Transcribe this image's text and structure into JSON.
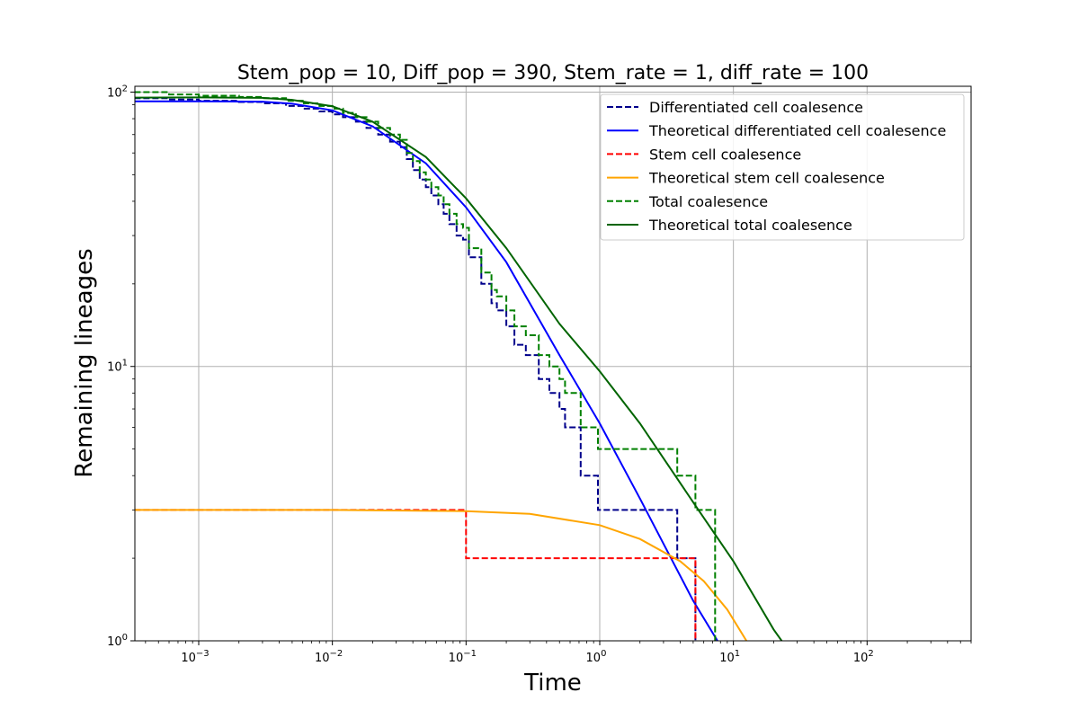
{
  "chart_data": {
    "type": "line",
    "title": "Stem_pop = 10, Diff_pop = 390, Stem_rate = 1, diff_rate = 100",
    "xlabel": "Time",
    "ylabel": "Remaining lineages",
    "xscale": "log",
    "yscale": "log",
    "xlim": [
      0.000333,
      600
    ],
    "ylim": [
      1,
      105
    ],
    "grid": true,
    "legend_position": "top-right",
    "xticks": [
      {
        "base": "10",
        "exp": "−3",
        "value": 0.001
      },
      {
        "base": "10",
        "exp": "−2",
        "value": 0.01
      },
      {
        "base": "10",
        "exp": "−1",
        "value": 0.1
      },
      {
        "base": "10",
        "exp": "0",
        "value": 1
      },
      {
        "base": "10",
        "exp": "1",
        "value": 10
      },
      {
        "base": "10",
        "exp": "2",
        "value": 100
      }
    ],
    "yticks": [
      {
        "base": "10",
        "exp": "0",
        "value": 1
      },
      {
        "base": "10",
        "exp": "1",
        "value": 10
      },
      {
        "base": "10",
        "exp": "2",
        "value": 100
      }
    ],
    "series": [
      {
        "name": "Differentiated cell coalesence",
        "color": "#00008b",
        "dash": "dashed",
        "step": true,
        "x": [
          0.00033,
          0.0006,
          0.001,
          0.002,
          0.003,
          0.0045,
          0.006,
          0.008,
          0.01,
          0.012,
          0.015,
          0.018,
          0.022,
          0.027,
          0.032,
          0.036,
          0.04,
          0.045,
          0.05,
          0.055,
          0.062,
          0.068,
          0.075,
          0.085,
          0.095,
          0.105,
          0.13,
          0.155,
          0.17,
          0.2,
          0.23,
          0.28,
          0.35,
          0.42,
          0.5,
          0.55,
          0.72,
          0.97,
          3.8,
          5.2
        ],
        "y": [
          95,
          94,
          93,
          92,
          91,
          89,
          87,
          85,
          83,
          81,
          78,
          74,
          70,
          66,
          63,
          57,
          52,
          48,
          45,
          42,
          39,
          36,
          33,
          30,
          29,
          25,
          20,
          17,
          16,
          14,
          12,
          11,
          9,
          8,
          7,
          6,
          4,
          3,
          2,
          1
        ]
      },
      {
        "name": "Theoretical differentiated cell coalesence",
        "color": "#0000ff",
        "dash": "solid",
        "step": false,
        "x": [
          0.00033,
          0.001,
          0.003,
          0.005,
          0.01,
          0.02,
          0.05,
          0.1,
          0.2,
          0.5,
          1,
          2,
          5,
          8
        ],
        "y": [
          92.5,
          92.6,
          92.3,
          90.7,
          85.8,
          75,
          55,
          38,
          24,
          11,
          6.2,
          3.3,
          1.4,
          0.96
        ]
      },
      {
        "name": "Stem cell coalesence",
        "color": "#ff0000",
        "dash": "dashed",
        "step": true,
        "x": [
          0.00033,
          0.1,
          5.2
        ],
        "y": [
          3,
          2,
          1
        ]
      },
      {
        "name": "Theoretical stem cell coalesence",
        "color": "#ffa500",
        "dash": "solid",
        "step": false,
        "x": [
          0.00033,
          0.01,
          0.1,
          0.3,
          1,
          2,
          4,
          6,
          9,
          13
        ],
        "y": [
          3,
          3,
          2.97,
          2.9,
          2.64,
          2.35,
          1.95,
          1.65,
          1.3,
          0.97
        ]
      },
      {
        "name": "Total coalesence",
        "color": "#008000",
        "dash": "dashed",
        "step": true,
        "x": [
          0.00033,
          0.0006,
          0.001,
          0.002,
          0.003,
          0.0045,
          0.006,
          0.008,
          0.01,
          0.012,
          0.015,
          0.018,
          0.022,
          0.027,
          0.032,
          0.036,
          0.04,
          0.045,
          0.05,
          0.055,
          0.062,
          0.068,
          0.075,
          0.085,
          0.095,
          0.105,
          0.13,
          0.155,
          0.17,
          0.2,
          0.23,
          0.28,
          0.35,
          0.42,
          0.5,
          0.55,
          0.72,
          0.97,
          3.8,
          5.2,
          7.3
        ],
        "y": [
          100,
          98,
          97,
          96,
          95,
          93,
          91,
          89,
          87,
          84,
          81,
          78,
          74,
          70,
          67,
          60,
          56,
          51,
          48,
          45,
          42,
          39,
          36,
          33,
          32,
          27,
          22,
          19,
          18,
          16,
          14,
          13,
          11,
          10,
          9,
          8,
          6,
          5,
          4,
          3,
          2
        ]
      },
      {
        "name": "Theoretical total coalesence",
        "color": "#006400",
        "dash": "solid",
        "step": false,
        "x": [
          0.00033,
          0.001,
          0.003,
          0.005,
          0.01,
          0.02,
          0.05,
          0.1,
          0.2,
          0.5,
          1,
          2,
          5,
          10,
          20,
          24
        ],
        "y": [
          95.5,
          95.6,
          95.3,
          93.7,
          88.8,
          78,
          58,
          41,
          27,
          14.3,
          9.6,
          6.2,
          3.2,
          1.95,
          1.1,
          0.97
        ]
      }
    ]
  }
}
